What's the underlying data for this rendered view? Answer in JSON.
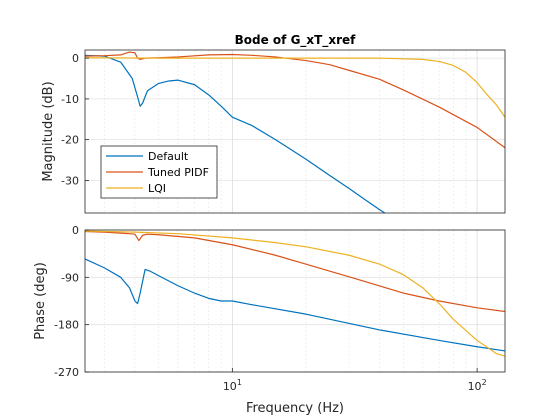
{
  "chart_data": [
    {
      "type": "line",
      "title": "Bode of G_xT_xref",
      "xlabel": "",
      "ylabel": "Magnitude (dB)",
      "xscale": "log",
      "xlim": [
        2.5,
        130
      ],
      "ylim": [
        -38,
        2
      ],
      "yticks": [
        0,
        -10,
        -20,
        -30
      ],
      "ytick_labels": [
        "0",
        "-10",
        "-20",
        "-30"
      ],
      "grid": true,
      "legend_position": "bottom-left",
      "series": [
        {
          "name": "Default",
          "color": "#0072BD",
          "x": [
            2.5,
            3.0,
            3.5,
            3.9,
            4.1,
            4.2,
            4.3,
            4.5,
            5.0,
            5.5,
            6.0,
            7.0,
            8.0,
            9.0,
            10.0,
            12.0,
            15.0,
            20.0,
            25.0,
            30.0,
            35.0,
            40.0,
            42.0
          ],
          "y": [
            0.7,
            0.5,
            -1.0,
            -5.0,
            -9.5,
            -11.8,
            -11.0,
            -8.0,
            -6.2,
            -5.6,
            -5.4,
            -6.5,
            -9.0,
            -11.8,
            -14.5,
            -16.5,
            -20.0,
            -24.8,
            -28.8,
            -32.0,
            -34.8,
            -37.2,
            -38.0
          ]
        },
        {
          "name": "Tuned PIDF",
          "color": "#D95319",
          "x": [
            2.5,
            3.0,
            3.5,
            3.8,
            4.0,
            4.1,
            4.2,
            4.4,
            5.0,
            6.0,
            8.0,
            10.0,
            12.0,
            15.0,
            20.0,
            25.0,
            30.0,
            40.0,
            50.0,
            70.0,
            100.0,
            130.0
          ],
          "y": [
            0.5,
            0.6,
            0.8,
            1.5,
            1.3,
            0.0,
            -0.3,
            0.0,
            0.1,
            0.3,
            0.8,
            0.9,
            0.7,
            0.3,
            -0.6,
            -1.6,
            -3.0,
            -5.2,
            -7.8,
            -12.0,
            -17.0,
            -22.0
          ]
        },
        {
          "name": "LQI",
          "color": "#EDB120",
          "x": [
            2.5,
            5.0,
            10.0,
            20.0,
            40.0,
            60.0,
            70.0,
            80.0,
            90.0,
            100.0,
            110.0,
            120.0,
            130.0
          ],
          "y": [
            0.1,
            0.0,
            0.0,
            0.0,
            0.0,
            -0.3,
            -0.8,
            -1.8,
            -3.5,
            -6.0,
            -9.0,
            -11.5,
            -14.5
          ]
        }
      ]
    },
    {
      "type": "line",
      "title": "",
      "xlabel": "Frequency  (Hz)",
      "ylabel": "Phase (deg)",
      "xscale": "log",
      "xlim": [
        2.5,
        130
      ],
      "ylim": [
        -270,
        0
      ],
      "yticks": [
        0,
        -90,
        -180,
        -270
      ],
      "ytick_labels": [
        "0",
        "-90",
        "-180",
        "-270"
      ],
      "xticks": [
        10,
        100
      ],
      "xtick_labels": [
        "10^1",
        "10^2"
      ],
      "grid": true,
      "series": [
        {
          "name": "Default",
          "color": "#0072BD",
          "x": [
            2.5,
            3.0,
            3.5,
            3.8,
            4.0,
            4.1,
            4.2,
            4.4,
            4.6,
            5.0,
            6.0,
            7.0,
            8.0,
            9.0,
            10.0,
            12.0,
            20.0,
            40.0,
            70.0,
            100.0,
            130.0
          ],
          "y": [
            -55,
            -72,
            -90,
            -110,
            -135,
            -140,
            -120,
            -75,
            -78,
            -87,
            -106,
            -120,
            -130,
            -135,
            -135,
            -142,
            -160,
            -190,
            -210,
            -222,
            -230
          ],
          "x_unit": "Hz"
        },
        {
          "name": "Tuned PIDF",
          "color": "#D95319",
          "x": [
            2.5,
            3.0,
            3.5,
            3.8,
            4.0,
            4.15,
            4.3,
            4.5,
            5.0,
            7.0,
            10.0,
            15.0,
            20.0,
            30.0,
            50.0,
            70.0,
            100.0,
            130.0
          ],
          "y": [
            -3,
            -4,
            -6,
            -7,
            -8,
            -20,
            -10,
            -8,
            -9,
            -15,
            -28,
            -48,
            -65,
            -89,
            -120,
            -135,
            -148,
            -155
          ]
        },
        {
          "name": "LQI",
          "color": "#EDB120",
          "x": [
            2.5,
            4.0,
            6.0,
            10.0,
            15.0,
            20.0,
            30.0,
            40.0,
            50.0,
            60.0,
            70.0,
            80.0,
            100.0,
            120.0,
            130.0
          ],
          "y": [
            -2,
            -4,
            -7,
            -15,
            -24,
            -32,
            -48,
            -65,
            -85,
            -110,
            -140,
            -170,
            -210,
            -235,
            -240
          ]
        }
      ]
    }
  ]
}
